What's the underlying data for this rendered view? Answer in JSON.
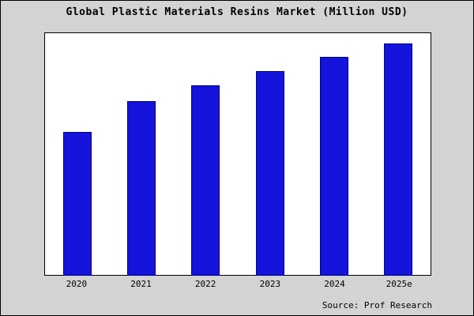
{
  "chart_data": {
    "type": "bar",
    "title": "Global Plastic Materials Resins Market (Million USD)",
    "categories": [
      "2020",
      "2021",
      "2022",
      "2023",
      "2024",
      "2025e"
    ],
    "values": [
      62,
      75,
      82,
      88,
      94,
      100
    ],
    "ylim": [
      0,
      104
    ],
    "xlabel": "",
    "ylabel": "",
    "grid": false,
    "legend_position": "none",
    "bar_fill": "#1414dc",
    "bar_border": "#00008b"
  },
  "source": "Source: Prof Research",
  "colors": {
    "background": "#d3d3d3",
    "plot_background": "#ffffff",
    "frame_border": "#000000"
  }
}
